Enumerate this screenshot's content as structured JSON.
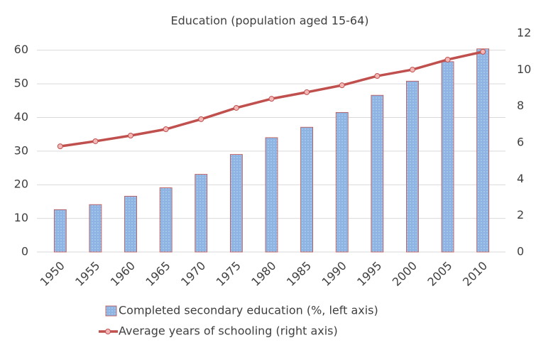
{
  "chart_data": {
    "type": "combo",
    "title": "Education (population aged 15-64)",
    "categories": [
      "1950",
      "1955",
      "1960",
      "1965",
      "1970",
      "1975",
      "1980",
      "1985",
      "1990",
      "1995",
      "2000",
      "2005",
      "2010"
    ],
    "series": [
      {
        "name": "Completed secondary education (%, left axis)",
        "type": "bar",
        "color": "#8db4e2",
        "edge": "#c0504d",
        "values": [
          12.6,
          14.1,
          16.6,
          19.1,
          23.1,
          29.0,
          34.0,
          37.1,
          41.5,
          46.6,
          50.8,
          56.6,
          60.4
        ]
      },
      {
        "name": "Average years of schooling (right axis)",
        "type": "line",
        "axis": "y2",
        "color": "#c0504d",
        "marker": "#f2b8b8",
        "values": [
          5.8,
          6.08,
          6.39,
          6.74,
          7.29,
          7.91,
          8.41,
          8.77,
          9.15,
          9.66,
          10.01,
          10.56,
          10.99
        ]
      }
    ],
    "ylim": [
      0,
      65
    ],
    "yticks": [
      0,
      10,
      20,
      30,
      40,
      50,
      60
    ],
    "y2lim": [
      0,
      12
    ],
    "y2ticks": [
      0,
      2,
      4,
      6,
      8,
      10,
      12
    ],
    "grid": true,
    "legend": "bottom"
  }
}
